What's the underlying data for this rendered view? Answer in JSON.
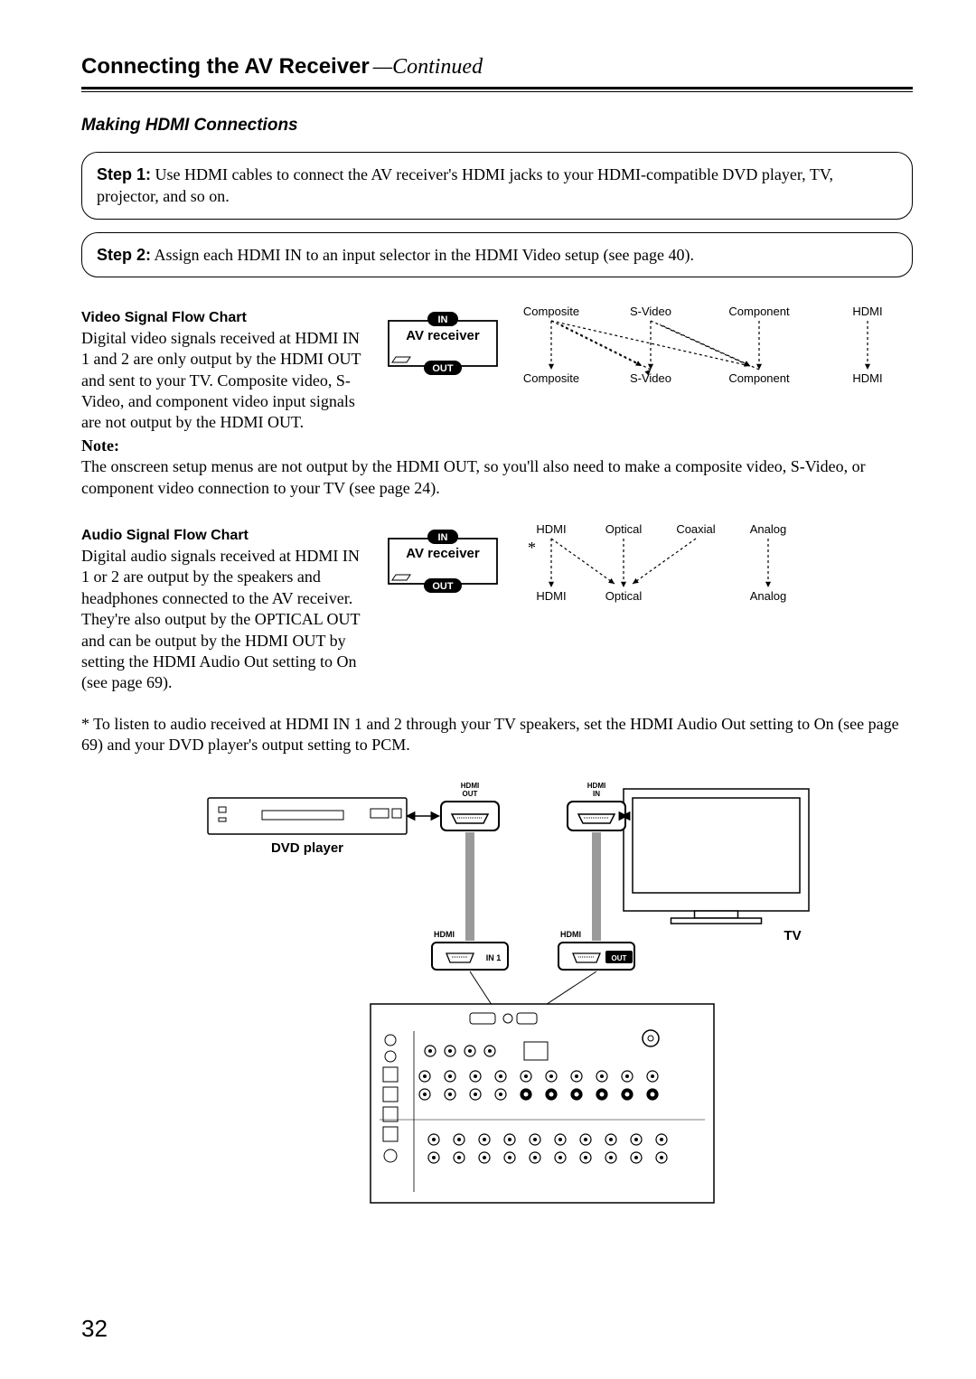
{
  "title": {
    "main": "Connecting the AV Receiver",
    "continued": "—Continued"
  },
  "section_heading": "Making HDMI Connections",
  "steps": {
    "step1": {
      "label": "Step 1:",
      "text": " Use HDMI cables to connect the AV receiver's HDMI jacks to your HDMI-compatible DVD player, TV, projector, and so on."
    },
    "step2": {
      "label": "Step 2:",
      "text": " Assign each HDMI IN to an input selector in the HDMI Video setup (see page 40)."
    }
  },
  "video_flow": {
    "heading": "Video Signal Flow Chart",
    "para": "Digital video signals received at HDMI IN 1 and 2 are only output by the HDMI OUT and sent to your TV. Composite video, S-Video, and component video input signals are not output by the HDMI OUT.",
    "note_label": "Note:",
    "note_text": "The onscreen setup menus are not output by the HDMI OUT, so you'll also need to make a composite video, S-Video, or component video connection to your TV (see page 24).",
    "chart": {
      "receiver_label": "AV receiver",
      "in_label": "IN",
      "out_label": "OUT",
      "top_labels": [
        "Composite",
        "S-Video",
        "Component",
        "HDMI"
      ],
      "bottom_labels": [
        "Composite",
        "S-Video",
        "Component",
        "HDMI"
      ],
      "font": "Arial, Helvetica, sans-serif",
      "font_size": 13,
      "label_font_size": 15,
      "line_color": "#000000",
      "bg": "#ffffff"
    }
  },
  "audio_flow": {
    "heading": "Audio Signal Flow Chart",
    "para": "Digital audio signals received at HDMI IN 1 or 2 are output by the speakers and headphones connected to the AV receiver. They're also output by the OPTICAL OUT and can be output by the HDMI OUT by setting the HDMI Audio Out setting to On (see page 69).",
    "footnote": "* To listen to audio received at HDMI IN 1 and 2 through your TV speakers, set the HDMI Audio Out setting to On (see page 69) and your DVD player's output setting to PCM.",
    "chart": {
      "receiver_label": "AV receiver",
      "in_label": "IN",
      "out_label": "OUT",
      "top_labels": [
        "HDMI",
        "Optical",
        "Coaxial",
        "Analog"
      ],
      "bottom_labels": [
        "HDMI",
        "Optical",
        "Analog"
      ],
      "star": "*",
      "font": "Arial, Helvetica, sans-serif",
      "font_size": 13,
      "label_font_size": 15,
      "line_color": "#000000",
      "bg": "#ffffff"
    }
  },
  "diagram": {
    "dvd_label": "DVD player",
    "tv_label": "TV",
    "hdmi_out": "HDMI\nOUT",
    "hdmi_in": "HDMI\nIN",
    "hdmi": "HDMI",
    "in1": "IN 1",
    "out": "OUT",
    "font": "Arial, Helvetica, sans-serif"
  },
  "page_number": "32"
}
